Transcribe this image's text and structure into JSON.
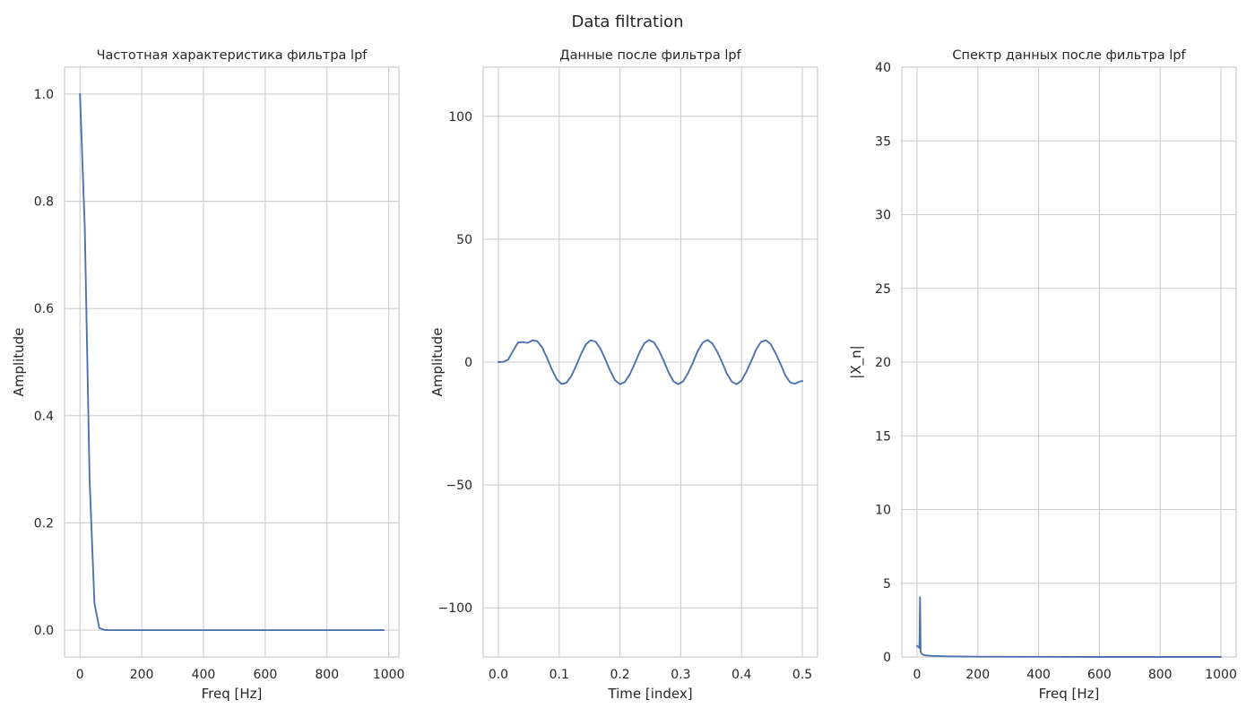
{
  "figure": {
    "title": "Data filtration"
  },
  "colors": {
    "line": "#4c72b0",
    "grid": "#cccccc",
    "text": "#262626",
    "background": "#ffffff"
  },
  "chart_data": [
    {
      "type": "line",
      "title": "Частотная характеристика фильтра lpf",
      "xlabel": "Freq [Hz]",
      "ylabel": "Amplitude",
      "xlim": [
        -50,
        1033
      ],
      "ylim": [
        -0.05,
        1.05
      ],
      "xticks": [
        0,
        200,
        400,
        600,
        800,
        1000
      ],
      "xtick_labels": [
        "0",
        "200",
        "400",
        "600",
        "800",
        "1000"
      ],
      "yticks": [
        0.0,
        0.2,
        0.4,
        0.6,
        0.8,
        1.0
      ],
      "ytick_labels": [
        "0.0",
        "0.2",
        "0.4",
        "0.6",
        "0.8",
        "1.0"
      ],
      "grid": true,
      "series": [
        {
          "x": [
            0,
            15.6,
            31.2,
            46.9,
            62.5,
            78.1,
            93.8,
            125,
            200,
            400,
            600,
            800,
            984
          ],
          "y": [
            1.0,
            0.75,
            0.28,
            0.05,
            0.004,
            0.0005,
            0.0,
            0.0,
            0.0,
            0.0,
            0.0,
            0.0,
            0.0
          ]
        }
      ]
    },
    {
      "type": "line",
      "title": "Данные после фильтра lpf",
      "xlabel": "Time [index]",
      "ylabel": "Amplitude",
      "xlim": [
        -0.025,
        0.525
      ],
      "ylim": [
        -120,
        120
      ],
      "xticks": [
        0.0,
        0.1,
        0.2,
        0.3,
        0.4,
        0.5
      ],
      "xtick_labels": [
        "0.0",
        "0.1",
        "0.2",
        "0.3",
        "0.4",
        "0.5"
      ],
      "yticks": [
        -100,
        -50,
        0,
        50,
        100
      ],
      "ytick_labels": [
        "−100",
        "−50",
        "0",
        "50",
        "100"
      ],
      "grid": true,
      "series": [
        {
          "x": [
            0.0,
            0.008,
            0.016,
            0.024,
            0.032,
            0.04,
            0.048,
            0.056,
            0.064,
            0.072,
            0.08,
            0.088,
            0.096,
            0.104,
            0.112,
            0.12,
            0.128,
            0.136,
            0.144,
            0.152,
            0.16,
            0.168,
            0.176,
            0.184,
            0.192,
            0.2,
            0.208,
            0.216,
            0.224,
            0.232,
            0.24,
            0.248,
            0.256,
            0.264,
            0.272,
            0.28,
            0.288,
            0.296,
            0.304,
            0.312,
            0.32,
            0.328,
            0.336,
            0.344,
            0.352,
            0.36,
            0.368,
            0.376,
            0.384,
            0.392,
            0.4,
            0.408,
            0.416,
            0.424,
            0.432,
            0.44,
            0.448,
            0.456,
            0.464,
            0.472,
            0.48,
            0.488,
            0.496,
            0.5
          ],
          "y": [
            0.0,
            0.1,
            1.0,
            4.5,
            7.9,
            8.2,
            7.8,
            8.8,
            8.5,
            6.0,
            1.7,
            -3.0,
            -7.0,
            -8.9,
            -8.4,
            -5.7,
            -1.4,
            3.3,
            7.2,
            8.9,
            8.3,
            5.4,
            1.1,
            -3.6,
            -7.4,
            -9.0,
            -8.1,
            -5.1,
            -0.8,
            3.9,
            7.6,
            9.0,
            8.0,
            4.8,
            0.5,
            -4.2,
            -7.8,
            -9.0,
            -7.8,
            -4.5,
            -0.2,
            4.5,
            7.9,
            9.0,
            7.6,
            4.2,
            -0.1,
            -4.8,
            -8.0,
            -9.0,
            -7.5,
            -3.9,
            0.4,
            5.1,
            8.2,
            8.9,
            7.3,
            3.6,
            -0.7,
            -5.4,
            -8.3,
            -8.8,
            -7.9,
            -7.7
          ]
        }
      ]
    },
    {
      "type": "line",
      "title": "Спектр данных после фильтра lpf",
      "xlabel": "Freq [Hz]",
      "ylabel": "|X_n|",
      "xlim": [
        -50,
        1050
      ],
      "ylim": [
        0,
        40
      ],
      "xticks": [
        0,
        200,
        400,
        600,
        800,
        1000
      ],
      "xtick_labels": [
        "0",
        "200",
        "400",
        "600",
        "800",
        "1000"
      ],
      "yticks": [
        0,
        5,
        10,
        15,
        20,
        25,
        30,
        35,
        40
      ],
      "ytick_labels": [
        "0",
        "5",
        "10",
        "15",
        "20",
        "25",
        "30",
        "35",
        "40"
      ],
      "grid": true,
      "series": [
        {
          "x": [
            0,
            4,
            8,
            10,
            12,
            16,
            20,
            30,
            50,
            100,
            200,
            400,
            600,
            800,
            1000
          ],
          "y": [
            0.75,
            0.7,
            0.6,
            4.05,
            0.35,
            0.2,
            0.15,
            0.1,
            0.07,
            0.04,
            0.02,
            0.01,
            0.0,
            0.0,
            0.0
          ]
        }
      ]
    }
  ]
}
